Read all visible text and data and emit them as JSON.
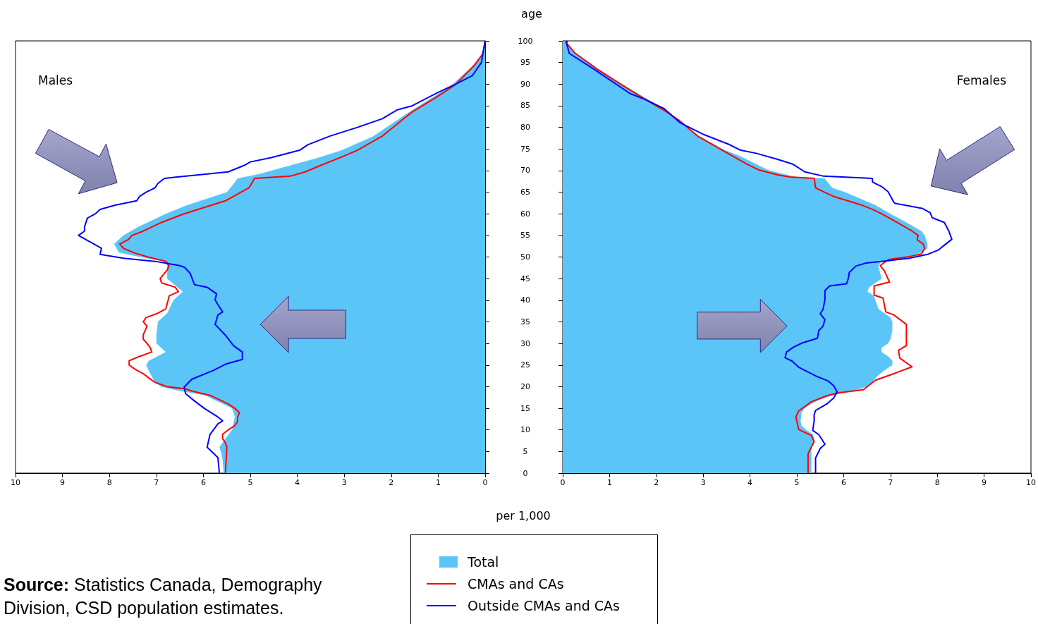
{
  "chart_data": [
    {
      "type": "area",
      "orientation": "horizontal",
      "xlabel": "per 1,000",
      "ylabel": "age",
      "legend": "bottom",
      "annotations": [
        "Males",
        "Source: Statistics Canada, Demography Division, CSD population estimates."
      ],
      "xlim": [
        10,
        0
      ],
      "xticks": [
        10,
        9,
        8,
        7,
        6,
        5,
        4,
        3,
        2,
        1,
        0
      ],
      "ylim": [
        0,
        100
      ],
      "yticks": [
        0,
        5,
        10,
        15,
        20,
        25,
        30,
        35,
        40,
        45,
        50,
        55,
        60,
        65,
        70,
        75,
        80,
        85,
        90,
        95,
        100
      ],
      "series": [
        {
          "name": "Total",
          "color": "#5bc5f8",
          "x": [
            0,
            3,
            5,
            6,
            8,
            10,
            12,
            13,
            15,
            17,
            18,
            19,
            20,
            21,
            23,
            25,
            26,
            28,
            30,
            32,
            35,
            37,
            40,
            42,
            45,
            48,
            49,
            50,
            51,
            53,
            55,
            57,
            60,
            62,
            65,
            67,
            68.2,
            69.2,
            70.6,
            72.9,
            74.7,
            77.9,
            83.6,
            87.1,
            89.9,
            94.2,
            97,
            100
          ],
          "values": [
            5.57,
            5.59,
            5.63,
            5.66,
            5.53,
            5.39,
            5.35,
            5.33,
            5.39,
            5.78,
            5.95,
            6.5,
            6.9,
            7.03,
            7.13,
            7.22,
            7.16,
            6.8,
            7.0,
            7.0,
            6.97,
            6.77,
            6.64,
            6.44,
            6.77,
            6.77,
            6.85,
            7.35,
            7.8,
            7.9,
            7.7,
            7.38,
            6.8,
            6.35,
            5.5,
            5.35,
            5.27,
            4.81,
            4.35,
            3.57,
            3.05,
            2.39,
            1.61,
            1.09,
            0.7,
            0.27,
            0.06,
            0
          ]
        },
        {
          "name": "CMAs and CAs",
          "type": "line",
          "color": "#ff0000",
          "x": [
            0,
            6,
            7,
            8,
            9,
            10,
            11,
            12,
            13,
            14,
            15,
            16,
            17,
            18,
            19,
            19.5,
            20,
            21,
            22,
            23,
            24,
            25,
            26,
            27,
            28,
            29,
            30,
            31,
            32,
            34,
            35,
            36,
            37,
            38,
            40,
            41,
            42,
            43,
            44,
            45,
            47,
            48,
            49,
            50,
            51,
            52,
            53,
            54,
            55,
            56,
            58,
            60,
            63,
            65,
            66,
            68.2,
            68.7,
            69.7,
            71.2,
            72.9,
            74.7,
            77.9,
            83.6,
            87.1,
            89.9,
            94.2,
            97,
            100
          ],
          "values": [
            5.53,
            5.5,
            5.53,
            5.59,
            5.59,
            5.47,
            5.33,
            5.27,
            5.27,
            5.23,
            5.33,
            5.47,
            5.66,
            5.86,
            6.25,
            6.38,
            6.77,
            7.03,
            7.16,
            7.28,
            7.45,
            7.58,
            7.58,
            7.36,
            7.1,
            7.13,
            7.2,
            7.28,
            7.28,
            7.2,
            7.28,
            7.22,
            6.97,
            6.8,
            6.75,
            6.73,
            6.53,
            6.6,
            6.89,
            6.92,
            6.77,
            6.73,
            6.8,
            7.18,
            7.48,
            7.7,
            7.78,
            7.6,
            7.52,
            7.28,
            6.89,
            6.41,
            5.53,
            5.2,
            5.03,
            4.91,
            4.15,
            3.83,
            3.5,
            3.11,
            2.72,
            2.2,
            1.55,
            1.02,
            0.63,
            0.24,
            0.05,
            0
          ]
        },
        {
          "name": "Outside CMAs and CAs",
          "type": "line",
          "color": "#0000ff",
          "x": [
            0,
            3.6,
            6,
            8.9,
            11.4,
            12.1,
            13.2,
            14.9,
            16.7,
            18.4,
            19.9,
            21.7,
            23.8,
            25.2,
            26.3,
            28,
            29.5,
            31.9,
            34.4,
            36.6,
            37.3,
            39,
            40.1,
            41.5,
            43,
            43.6,
            46.2,
            47.6,
            48,
            49,
            49.7,
            50.6,
            52,
            53,
            54,
            55,
            56,
            57,
            58,
            59,
            60,
            61,
            62,
            63,
            64,
            65,
            66,
            67,
            68.2,
            69.7,
            71.2,
            72,
            73,
            74.7,
            76,
            78,
            80,
            82,
            84,
            85,
            88,
            90,
            92,
            95,
            100
          ],
          "values": [
            5.66,
            5.69,
            5.92,
            5.86,
            5.69,
            5.59,
            5.72,
            5.97,
            6.19,
            6.38,
            6.41,
            6.25,
            5.78,
            5.53,
            5.17,
            5.17,
            5.36,
            5.53,
            5.75,
            5.69,
            5.59,
            5.69,
            5.75,
            5.72,
            5.92,
            6.19,
            6.28,
            6.4,
            6.5,
            7.03,
            7.7,
            8.2,
            8.17,
            8.33,
            8.5,
            8.66,
            8.53,
            8.53,
            8.5,
            8.47,
            8.3,
            8.2,
            7.88,
            7.42,
            7.36,
            7.22,
            7.03,
            6.97,
            6.83,
            5.47,
            5.13,
            5.0,
            4.55,
            3.95,
            3.77,
            3.3,
            2.72,
            2.19,
            1.88,
            1.55,
            1.02,
            0.63,
            0.27,
            0.08,
            0
          ]
        }
      ]
    },
    {
      "type": "area",
      "orientation": "horizontal",
      "tick_labels": "x",
      "annotations": [
        "Females"
      ],
      "xlim": [
        0,
        10
      ],
      "xticks": [
        0,
        1,
        2,
        3,
        4,
        5,
        6,
        7,
        8,
        9,
        10
      ],
      "ylim": [
        0,
        100
      ],
      "yticks": [
        0,
        5,
        10,
        15,
        20,
        25,
        30,
        35,
        40,
        45,
        50,
        55,
        60,
        65,
        70,
        75,
        80,
        85,
        90,
        95,
        100
      ],
      "series": [
        {
          "color": "#5bc5f8",
          "x": [
            0,
            6,
            8,
            9,
            10,
            11,
            12,
            14,
            15,
            16,
            17,
            18,
            19,
            20,
            21,
            22,
            23,
            24,
            25,
            26,
            27,
            28,
            29,
            30,
            31,
            33,
            35,
            36,
            37,
            38,
            40,
            41,
            42,
            43,
            45,
            48,
            48.9,
            49.5,
            51,
            52,
            53,
            55,
            56,
            58,
            60,
            62,
            65,
            66,
            68.2,
            68.5,
            70.1,
            73.3,
            74.7,
            77.9,
            81.5,
            83.9,
            86.4,
            90.3,
            93.5,
            97.1,
            100
          ],
          "values": [
            5.31,
            5.31,
            5.37,
            5.34,
            5.2,
            5.1,
            5.08,
            5.1,
            5.17,
            5.3,
            5.5,
            5.76,
            6.22,
            6.48,
            6.61,
            6.68,
            6.78,
            6.9,
            7.04,
            7.04,
            6.95,
            6.81,
            6.81,
            6.95,
            7.0,
            7.04,
            7.04,
            7.0,
            6.87,
            6.74,
            6.68,
            6.65,
            6.51,
            6.54,
            6.81,
            6.74,
            6.8,
            7.26,
            7.66,
            7.79,
            7.79,
            7.73,
            7.66,
            7.34,
            7.0,
            6.68,
            6.03,
            5.76,
            5.59,
            4.98,
            4.39,
            3.8,
            3.47,
            2.92,
            2.5,
            2.2,
            1.83,
            1.22,
            0.76,
            0.28,
            0.05
          ]
        },
        {
          "type": "line",
          "color": "#ff0000",
          "x": [
            0,
            4.5,
            7.3,
            8.7,
            10.1,
            13,
            14.4,
            16.5,
            17.9,
            18.6,
            19.3,
            21.5,
            23,
            24.6,
            26.6,
            28.4,
            29.5,
            34.4,
            36.6,
            37.3,
            40.5,
            41.2,
            43.3,
            44.2,
            46.8,
            48,
            49.4,
            50.1,
            50.7,
            52,
            53,
            54,
            55,
            56,
            58,
            60,
            61,
            62,
            63,
            64,
            65,
            66,
            68.2,
            68.5,
            69,
            70.1,
            71.5,
            74.7,
            77.9,
            81.5,
            83.9,
            86.4,
            90.3,
            93.5,
            97.1,
            99.5,
            100
          ],
          "values": [
            5.24,
            5.24,
            5.37,
            5.31,
            5.04,
            4.98,
            5.04,
            5.31,
            5.64,
            5.9,
            6.42,
            6.68,
            7.07,
            7.46,
            7.2,
            7.17,
            7.34,
            7.34,
            7.07,
            6.9,
            6.84,
            6.65,
            6.65,
            6.98,
            6.87,
            6.78,
            6.95,
            7.4,
            7.66,
            7.73,
            7.7,
            7.57,
            7.59,
            7.46,
            7.14,
            6.81,
            6.62,
            6.39,
            6.09,
            5.79,
            5.59,
            5.4,
            5.37,
            4.85,
            4.59,
            4.2,
            3.93,
            3.41,
            2.89,
            2.5,
            2.17,
            1.77,
            1.19,
            0.73,
            0.27,
            0.08,
            0.05
          ]
        },
        {
          "type": "line",
          "color": "#0000ff",
          "x": [
            0,
            3.5,
            5.7,
            6.7,
            8.9,
            9.9,
            12.1,
            13.5,
            14.5,
            16,
            17.4,
            18.8,
            20.2,
            21.3,
            22.3,
            23.4,
            24.5,
            25.9,
            26.7,
            28,
            29.1,
            30.1,
            31.2,
            33,
            34,
            35.5,
            36.9,
            37.9,
            40.1,
            42.2,
            43.3,
            43.8,
            45,
            46.4,
            47.9,
            48.6,
            49.2,
            49.7,
            50.6,
            51.6,
            53,
            54.1,
            55.9,
            58,
            59.1,
            60.2,
            61.2,
            62.4,
            62.7,
            65.1,
            66.3,
            67.3,
            68.2,
            68.7,
            69.7,
            71.5,
            72.6,
            74,
            74.7,
            76.1,
            78.3,
            81.1,
            84.3,
            86.4,
            87.8,
            93.5,
            97.1,
            99.5,
            100
          ],
          "values": [
            5.4,
            5.4,
            5.5,
            5.6,
            5.47,
            5.34,
            5.37,
            5.37,
            5.4,
            5.64,
            5.79,
            5.86,
            5.79,
            5.67,
            5.44,
            5.24,
            5.04,
            4.9,
            4.75,
            4.78,
            4.92,
            5.11,
            5.44,
            5.47,
            5.56,
            5.6,
            5.5,
            5.56,
            5.6,
            5.6,
            5.7,
            6.06,
            6.1,
            6.12,
            6.26,
            6.48,
            7.0,
            7.4,
            7.79,
            8.02,
            8.18,
            8.31,
            8.25,
            8.15,
            7.89,
            7.85,
            7.69,
            7.1,
            7.07,
            6.95,
            6.81,
            6.62,
            6.61,
            5.57,
            5.17,
            4.91,
            4.59,
            4.13,
            3.8,
            3.54,
            3.02,
            2.5,
            2.17,
            1.77,
            1.44,
            0.66,
            0.14,
            0.08,
            0.1
          ]
        }
      ]
    }
  ]
}
